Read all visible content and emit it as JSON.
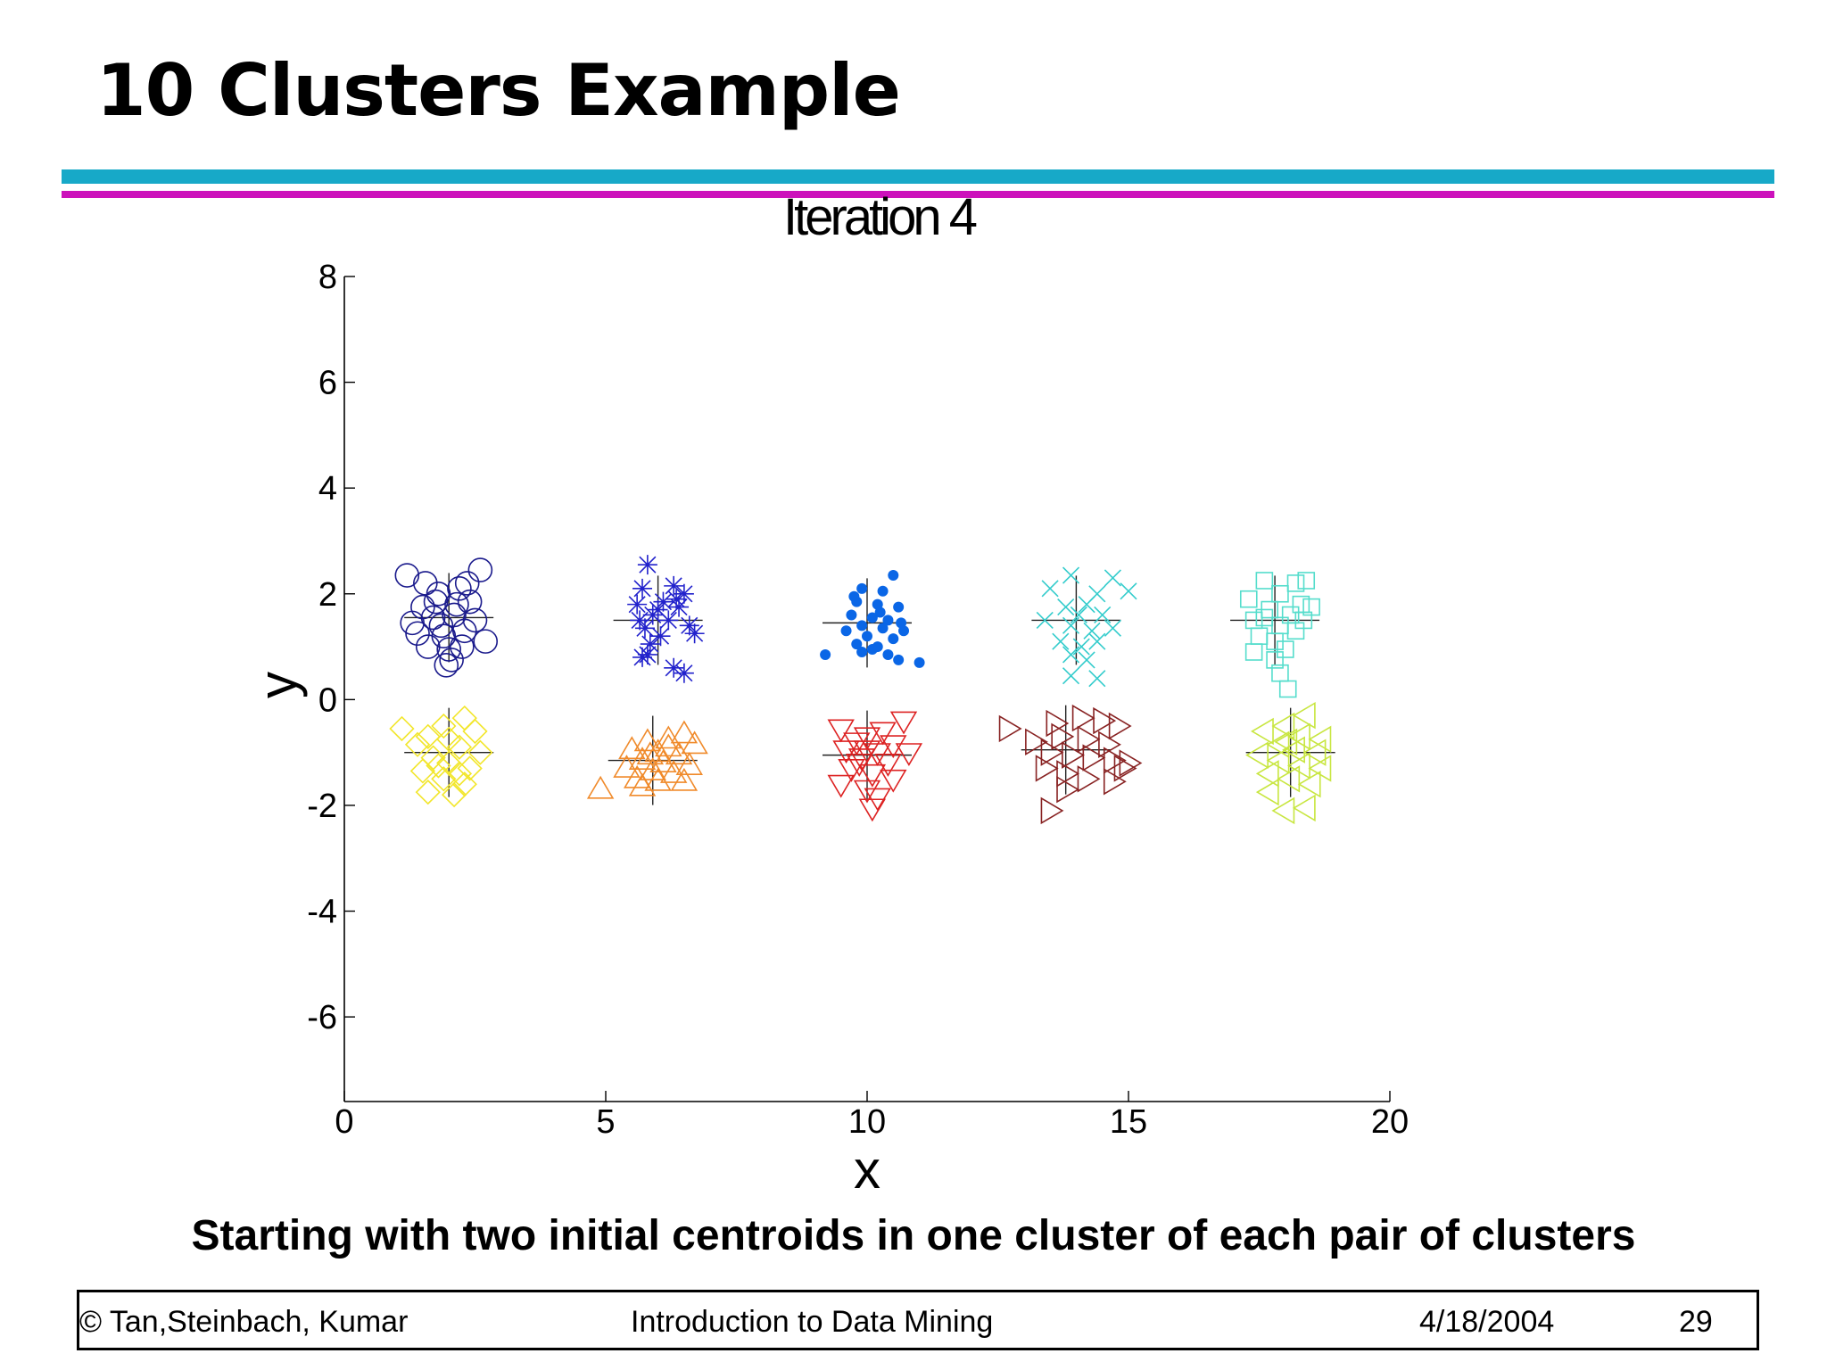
{
  "slide": {
    "title": "10 Clusters Example",
    "caption": "Starting with two initial centroids in one cluster of each pair of clusters",
    "footer": {
      "left": "© Tan,Steinbach, Kumar",
      "center": "Introduction to Data Mining",
      "date": "4/18/2004",
      "page": "29"
    },
    "colors": {
      "rule_teal": "#17a9c8",
      "rule_magenta": "#cc11bb"
    }
  },
  "chart_data": {
    "type": "scatter",
    "title": "Iteration 4",
    "xlabel": "x",
    "ylabel": "y",
    "xlim": [
      0,
      20
    ],
    "ylim": [
      -7.6,
      8
    ],
    "xticks": [
      0,
      5,
      10,
      15,
      20
    ],
    "yticks": [
      8,
      6,
      4,
      2,
      0,
      -2,
      -4,
      -6
    ],
    "grid": false,
    "legend": "none",
    "series": [
      {
        "marker": "circle",
        "color": "#1a1a8c",
        "centroid": [
          2.0,
          1.55
        ],
        "points": [
          [
            1.2,
            2.35
          ],
          [
            2.6,
            2.45
          ],
          [
            1.8,
            2.0
          ],
          [
            2.2,
            2.1
          ],
          [
            1.5,
            1.75
          ],
          [
            2.4,
            1.85
          ],
          [
            1.7,
            1.55
          ],
          [
            2.1,
            1.6
          ],
          [
            2.5,
            1.5
          ],
          [
            1.4,
            1.25
          ],
          [
            1.9,
            1.2
          ],
          [
            2.3,
            1.3
          ],
          [
            2.7,
            1.1
          ],
          [
            1.6,
            1.0
          ],
          [
            2.0,
            0.95
          ],
          [
            1.95,
            0.65
          ],
          [
            2.05,
            0.75
          ],
          [
            1.85,
            1.4
          ],
          [
            2.15,
            1.8
          ],
          [
            1.55,
            2.2
          ],
          [
            2.35,
            2.2
          ],
          [
            1.3,
            1.45
          ],
          [
            1.75,
            1.85
          ],
          [
            2.25,
            1.0
          ]
        ]
      },
      {
        "marker": "asterisk",
        "color": "#2222cc",
        "centroid": [
          6.0,
          1.5
        ],
        "points": [
          [
            5.8,
            2.55
          ],
          [
            5.7,
            2.1
          ],
          [
            6.3,
            2.15
          ],
          [
            6.5,
            2.0
          ],
          [
            5.6,
            1.8
          ],
          [
            6.1,
            1.85
          ],
          [
            6.4,
            1.75
          ],
          [
            5.9,
            1.6
          ],
          [
            6.2,
            1.5
          ],
          [
            6.6,
            1.4
          ],
          [
            5.75,
            1.35
          ],
          [
            6.05,
            1.2
          ],
          [
            6.7,
            1.25
          ],
          [
            5.85,
            1.05
          ],
          [
            5.8,
            0.85
          ],
          [
            5.7,
            0.8
          ],
          [
            6.3,
            0.6
          ],
          [
            6.5,
            0.5
          ],
          [
            6.0,
            1.7
          ],
          [
            5.65,
            1.5
          ],
          [
            6.35,
            1.9
          ]
        ]
      },
      {
        "marker": "dot",
        "color": "#0a66e6",
        "centroid": [
          10.0,
          1.45
        ],
        "points": [
          [
            10.5,
            2.35
          ],
          [
            9.9,
            2.1
          ],
          [
            10.3,
            2.05
          ],
          [
            9.8,
            1.85
          ],
          [
            10.2,
            1.8
          ],
          [
            10.6,
            1.75
          ],
          [
            9.7,
            1.6
          ],
          [
            10.1,
            1.55
          ],
          [
            10.4,
            1.5
          ],
          [
            9.9,
            1.4
          ],
          [
            10.3,
            1.35
          ],
          [
            10.7,
            1.3
          ],
          [
            9.6,
            1.3
          ],
          [
            10.0,
            1.2
          ],
          [
            10.5,
            1.15
          ],
          [
            9.8,
            1.05
          ],
          [
            10.2,
            1.0
          ],
          [
            9.9,
            0.9
          ],
          [
            10.4,
            0.85
          ],
          [
            10.1,
            0.95
          ],
          [
            10.6,
            0.75
          ],
          [
            11.0,
            0.7
          ],
          [
            9.2,
            0.85
          ],
          [
            10.65,
            1.45
          ],
          [
            9.75,
            1.95
          ],
          [
            10.25,
            1.65
          ]
        ]
      },
      {
        "marker": "x",
        "color": "#33cccc",
        "centroid": [
          14.0,
          1.5
        ],
        "points": [
          [
            13.9,
            2.35
          ],
          [
            14.4,
            2.0
          ],
          [
            14.7,
            2.3
          ],
          [
            15.0,
            2.05
          ],
          [
            13.5,
            2.1
          ],
          [
            13.8,
            1.75
          ],
          [
            14.2,
            1.8
          ],
          [
            14.5,
            1.6
          ],
          [
            13.4,
            1.5
          ],
          [
            13.9,
            1.4
          ],
          [
            14.3,
            1.3
          ],
          [
            14.7,
            1.35
          ],
          [
            13.7,
            1.1
          ],
          [
            14.1,
            1.0
          ],
          [
            14.4,
            1.1
          ],
          [
            13.9,
            0.85
          ],
          [
            14.2,
            0.75
          ],
          [
            13.9,
            0.45
          ],
          [
            14.4,
            0.4
          ],
          [
            14.05,
            1.6
          ]
        ]
      },
      {
        "marker": "square",
        "color": "#55ddcc",
        "centroid": [
          17.8,
          1.5
        ],
        "points": [
          [
            17.6,
            2.25
          ],
          [
            18.2,
            2.2
          ],
          [
            18.4,
            2.25
          ],
          [
            17.9,
            2.0
          ],
          [
            18.3,
            1.8
          ],
          [
            18.5,
            1.75
          ],
          [
            17.3,
            1.9
          ],
          [
            17.7,
            1.7
          ],
          [
            18.1,
            1.6
          ],
          [
            17.4,
            1.5
          ],
          [
            17.9,
            1.4
          ],
          [
            18.2,
            1.3
          ],
          [
            17.5,
            1.2
          ],
          [
            17.8,
            1.1
          ],
          [
            18.0,
            0.95
          ],
          [
            17.4,
            0.9
          ],
          [
            17.8,
            0.75
          ],
          [
            17.9,
            0.5
          ],
          [
            18.05,
            0.2
          ],
          [
            17.6,
            1.55
          ],
          [
            18.35,
            1.5
          ]
        ]
      },
      {
        "marker": "diamond",
        "color": "#f2e62a",
        "centroid": [
          2.0,
          -1.0
        ],
        "points": [
          [
            1.1,
            -0.55
          ],
          [
            2.3,
            -0.35
          ],
          [
            1.6,
            -0.7
          ],
          [
            2.5,
            -0.6
          ],
          [
            1.9,
            -0.5
          ],
          [
            1.4,
            -0.85
          ],
          [
            2.2,
            -0.9
          ],
          [
            2.6,
            -1.0
          ],
          [
            1.7,
            -1.1
          ],
          [
            2.0,
            -1.2
          ],
          [
            2.4,
            -1.3
          ],
          [
            1.5,
            -1.35
          ],
          [
            1.9,
            -1.5
          ],
          [
            2.3,
            -1.6
          ],
          [
            1.6,
            -1.75
          ],
          [
            2.1,
            -1.8
          ],
          [
            2.0,
            -0.75
          ],
          [
            1.8,
            -1.25
          ],
          [
            2.2,
            -1.4
          ]
        ]
      },
      {
        "marker": "triangle-up",
        "color": "#f08a2a",
        "centroid": [
          5.9,
          -1.15
        ],
        "points": [
          [
            6.5,
            -0.65
          ],
          [
            6.2,
            -0.75
          ],
          [
            5.8,
            -0.8
          ],
          [
            6.7,
            -0.85
          ],
          [
            5.5,
            -0.95
          ],
          [
            6.0,
            -1.0
          ],
          [
            6.4,
            -1.05
          ],
          [
            5.7,
            -1.15
          ],
          [
            6.1,
            -1.2
          ],
          [
            6.6,
            -1.25
          ],
          [
            5.4,
            -1.3
          ],
          [
            5.9,
            -1.35
          ],
          [
            6.3,
            -1.4
          ],
          [
            5.6,
            -1.5
          ],
          [
            6.0,
            -1.55
          ],
          [
            6.5,
            -1.55
          ],
          [
            4.9,
            -1.7
          ],
          [
            5.7,
            -1.65
          ],
          [
            6.2,
            -0.9
          ],
          [
            5.85,
            -1.05
          ]
        ]
      },
      {
        "marker": "triangle-down",
        "color": "#dd2222",
        "centroid": [
          10.0,
          -1.05
        ],
        "points": [
          [
            10.7,
            -0.4
          ],
          [
            9.5,
            -0.55
          ],
          [
            10.3,
            -0.6
          ],
          [
            10.0,
            -0.7
          ],
          [
            9.8,
            -0.8
          ],
          [
            10.5,
            -0.85
          ],
          [
            9.6,
            -0.95
          ],
          [
            10.2,
            -1.0
          ],
          [
            10.8,
            -1.0
          ],
          [
            9.9,
            -1.1
          ],
          [
            10.4,
            -1.2
          ],
          [
            9.7,
            -1.3
          ],
          [
            10.1,
            -1.4
          ],
          [
            10.5,
            -1.5
          ],
          [
            9.5,
            -1.6
          ],
          [
            10.0,
            -1.7
          ],
          [
            10.2,
            -1.85
          ],
          [
            10.1,
            -2.05
          ],
          [
            10.0,
            -0.95
          ],
          [
            9.85,
            -1.2
          ]
        ]
      },
      {
        "marker": "triangle-right",
        "color": "#882222",
        "centroid": [
          13.8,
          -0.95
        ],
        "points": [
          [
            12.7,
            -0.55
          ],
          [
            13.6,
            -0.45
          ],
          [
            14.1,
            -0.35
          ],
          [
            14.5,
            -0.4
          ],
          [
            14.8,
            -0.5
          ],
          [
            13.2,
            -0.8
          ],
          [
            13.7,
            -0.7
          ],
          [
            14.2,
            -0.75
          ],
          [
            14.6,
            -0.85
          ],
          [
            13.5,
            -1.0
          ],
          [
            13.9,
            -1.05
          ],
          [
            14.3,
            -1.1
          ],
          [
            14.7,
            -1.15
          ],
          [
            15.0,
            -1.2
          ],
          [
            13.4,
            -1.3
          ],
          [
            13.8,
            -1.4
          ],
          [
            14.2,
            -1.5
          ],
          [
            14.7,
            -1.55
          ],
          [
            13.8,
            -1.7
          ],
          [
            13.5,
            -2.1
          ],
          [
            14.9,
            -1.3
          ]
        ]
      },
      {
        "marker": "triangle-left",
        "color": "#c8e640",
        "centroid": [
          18.1,
          -1.0
        ],
        "points": [
          [
            18.4,
            -0.3
          ],
          [
            18.0,
            -0.5
          ],
          [
            17.6,
            -0.6
          ],
          [
            18.3,
            -0.7
          ],
          [
            18.7,
            -0.75
          ],
          [
            17.9,
            -0.85
          ],
          [
            18.2,
            -0.95
          ],
          [
            18.6,
            -1.0
          ],
          [
            17.5,
            -1.05
          ],
          [
            17.9,
            -1.15
          ],
          [
            18.3,
            -1.25
          ],
          [
            18.7,
            -1.3
          ],
          [
            17.7,
            -1.4
          ],
          [
            18.1,
            -1.5
          ],
          [
            18.5,
            -1.6
          ],
          [
            17.7,
            -1.75
          ],
          [
            18.0,
            -2.1
          ],
          [
            18.4,
            -2.05
          ],
          [
            18.05,
            -0.8
          ]
        ]
      }
    ]
  }
}
